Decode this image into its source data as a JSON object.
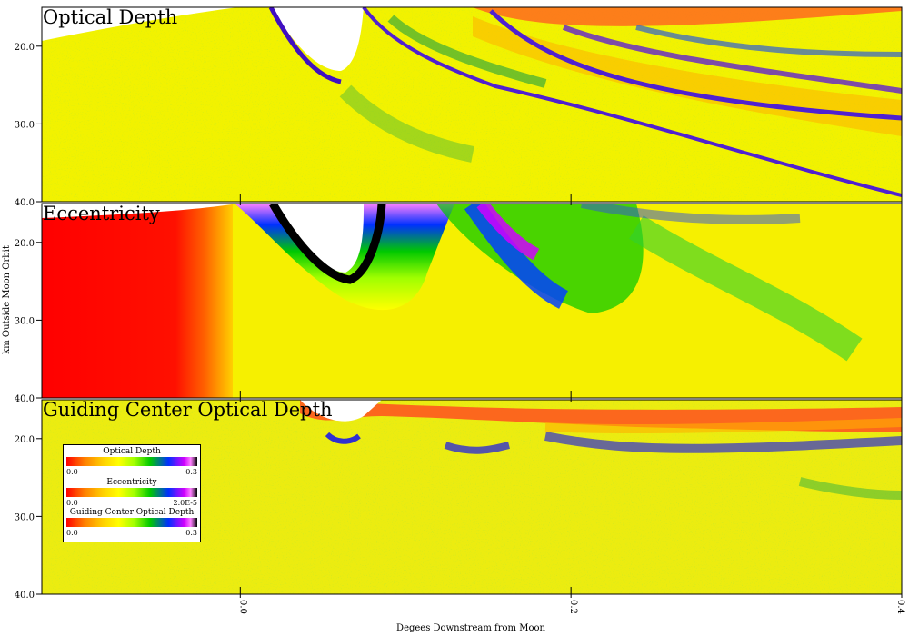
{
  "chart_data": [
    {
      "type": "heatmap",
      "title": "Optical Depth",
      "colorbar": {
        "label": "Optical Depth",
        "min": "0.0",
        "max": "0.3"
      },
      "yticks": [
        "20.0",
        "30.0",
        "40.0"
      ],
      "ylim": [
        15,
        40
      ],
      "xlim": [
        -0.12,
        0.4
      ]
    },
    {
      "type": "heatmap",
      "title": "Eccentricity",
      "colorbar": {
        "label": "Eccentricity",
        "min": "0.0",
        "max": "2.0E-5"
      },
      "yticks": [
        "20.0",
        "30.0",
        "40.0"
      ],
      "ylim": [
        15,
        40
      ],
      "xlim": [
        -0.12,
        0.4
      ]
    },
    {
      "type": "heatmap",
      "title": "Guiding Center Optical Depth",
      "colorbar": {
        "label": "Guiding Center Optical Depth",
        "min": "0.0",
        "max": "0.3"
      },
      "yticks": [
        "20.0",
        "30.0",
        "40.0"
      ],
      "ylim": [
        15,
        40
      ],
      "xlim": [
        -0.12,
        0.4
      ]
    }
  ],
  "axes": {
    "ylabel": "km Outside Moon Orbit",
    "xlabel": "Degees Downstream from Moon",
    "xticks": [
      "0.0",
      "0.2",
      "0.4"
    ]
  },
  "colors": {
    "colormap": [
      "#ff0000",
      "#ff8000",
      "#ffd000",
      "#ffff00",
      "#a0ff00",
      "#00c800",
      "#0030ff",
      "#d000ff",
      "#ff80ff",
      "#000000"
    ],
    "background": "#ffffff"
  }
}
